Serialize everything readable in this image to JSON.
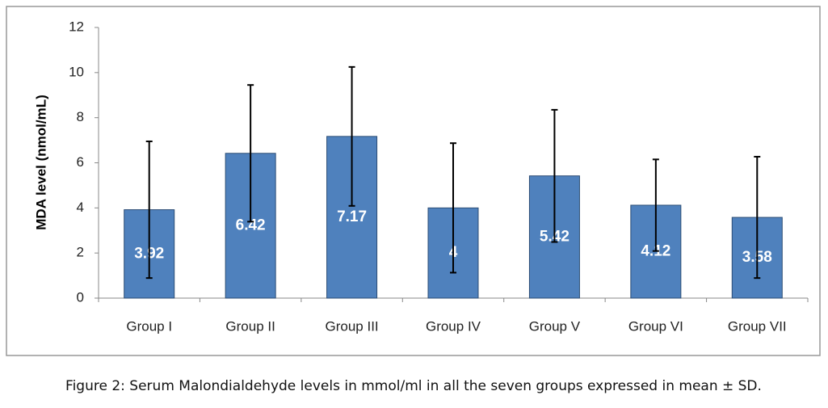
{
  "chart_data": {
    "type": "bar",
    "y_label": "MDA level (nmol/mL)",
    "caption": "Figure 2: Serum Malondialdehyde levels in mmol/ml in all the seven groups expressed in mean ± SD.",
    "categories": [
      "Group I",
      "Group II",
      "Group III",
      "Group IV",
      "Group V",
      "Group VI",
      "Group VII"
    ],
    "values": [
      3.92,
      6.42,
      7.17,
      4,
      5.42,
      4.12,
      3.58
    ],
    "errors": [
      3.03,
      3.03,
      3.08,
      2.87,
      2.93,
      2.03,
      2.69
    ],
    "color": "#4f81bd",
    "ylim": [
      0,
      12
    ],
    "yticks": [
      0,
      2,
      4,
      6,
      8,
      10,
      12
    ],
    "grid": false
  }
}
